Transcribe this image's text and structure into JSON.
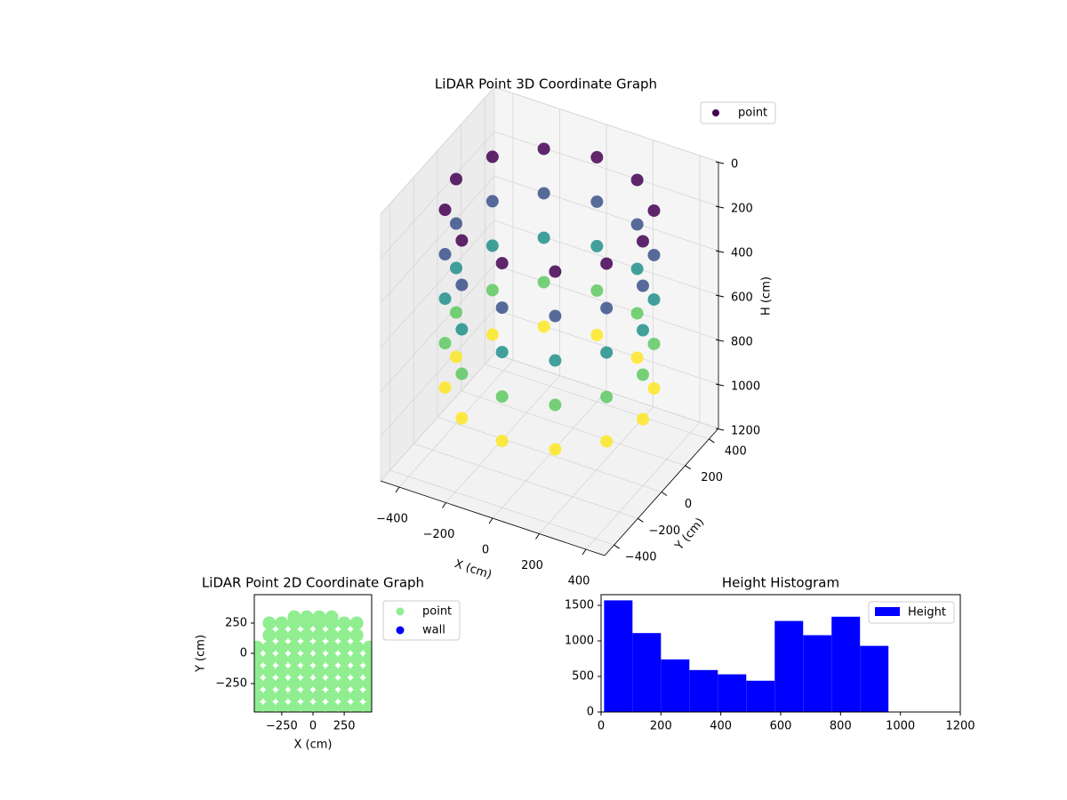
{
  "chart_data": [
    {
      "type": "scatter3d",
      "title": "LiDAR Point 3D Coordinate Graph",
      "xlabel": "X (cm)",
      "ylabel": "Y (cm)",
      "zlabel": "H (cm)",
      "xlim": [
        -480,
        480
      ],
      "ylim": [
        -480,
        480
      ],
      "zlim": [
        1200,
        0
      ],
      "xticks": [
        {
          "value": -400,
          "label": "−400"
        },
        {
          "value": -200,
          "label": "−200"
        },
        0,
        200,
        400
      ],
      "yticks": [
        {
          "value": -400,
          "label": "−400"
        },
        {
          "value": -200,
          "label": "−200"
        },
        0,
        200,
        400
      ],
      "zticks": [
        0,
        200,
        400,
        600,
        800,
        1000,
        1200
      ],
      "colormap": "viridis",
      "legend": "upper right",
      "series": [
        {
          "name": "point",
          "color": "#440154",
          "x": [
            400,
            346,
            200,
            0,
            -200,
            -346,
            -400,
            -346,
            -200,
            0,
            200,
            346,
            400,
            346,
            200,
            0,
            -200,
            -346,
            -400,
            -346,
            -200,
            0,
            200,
            346,
            400,
            346,
            200,
            0,
            -200,
            -346,
            -400,
            -346,
            -200,
            0,
            200,
            346,
            400,
            346,
            200,
            0,
            -200,
            -346,
            -400,
            -346,
            -200,
            0,
            200,
            346,
            400,
            346,
            200,
            0,
            -200,
            -346,
            -400,
            -346,
            -200,
            0,
            200,
            346
          ],
          "y": [
            0,
            200,
            346,
            400,
            346,
            200,
            0,
            -200,
            -346,
            -400,
            -346,
            -200,
            0,
            200,
            346,
            400,
            346,
            200,
            0,
            -200,
            -346,
            -400,
            -346,
            -200,
            0,
            200,
            346,
            400,
            346,
            200,
            0,
            -200,
            -346,
            -400,
            -346,
            -200,
            0,
            200,
            346,
            400,
            346,
            200,
            0,
            -200,
            -346,
            -400,
            -346,
            -200,
            0,
            200,
            346,
            400,
            346,
            200,
            0,
            -200,
            -346,
            -400,
            -346,
            -200
          ],
          "z": [
            100,
            100,
            100,
            100,
            100,
            100,
            100,
            100,
            100,
            100,
            100,
            100,
            300,
            300,
            300,
            300,
            300,
            300,
            300,
            300,
            300,
            300,
            300,
            300,
            500,
            500,
            500,
            500,
            500,
            500,
            500,
            500,
            500,
            500,
            500,
            500,
            700,
            700,
            700,
            700,
            700,
            700,
            700,
            700,
            700,
            700,
            700,
            700,
            900,
            900,
            900,
            900,
            900,
            900,
            900,
            900,
            900,
            900,
            900,
            900
          ]
        }
      ]
    },
    {
      "type": "scatter",
      "title": "LiDAR Point 2D Coordinate Graph",
      "xlabel": "X (cm)",
      "ylabel": "Y (cm)",
      "xlim": [
        -470,
        470
      ],
      "ylim": [
        -485,
        485
      ],
      "xticks": [
        {
          "value": -250,
          "label": "−250"
        },
        0,
        250
      ],
      "yticks": [
        {
          "value": -250,
          "label": "−250"
        },
        0,
        250
      ],
      "legend": "outside right",
      "series": [
        {
          "name": "point",
          "color": "#90ee90",
          "x": [
            -450,
            -450,
            -450,
            -450,
            -450,
            -450,
            -350,
            -350,
            -350,
            -350,
            -350,
            -350,
            -350,
            -350,
            -250,
            -250,
            -250,
            -250,
            -250,
            -250,
            -250,
            -250,
            -150,
            -150,
            -150,
            -150,
            -150,
            -150,
            -150,
            -150,
            -150,
            -50,
            -50,
            -50,
            -50,
            -50,
            -50,
            -50,
            -50,
            -50,
            50,
            50,
            50,
            50,
            50,
            50,
            50,
            50,
            50,
            150,
            150,
            150,
            150,
            150,
            150,
            150,
            150,
            150,
            250,
            250,
            250,
            250,
            250,
            250,
            250,
            250,
            350,
            350,
            350,
            350,
            350,
            350,
            350,
            350,
            450,
            450,
            450,
            450,
            450,
            450
          ],
          "y": [
            -450,
            -350,
            -250,
            -150,
            -50,
            50,
            -450,
            -350,
            -250,
            -150,
            -50,
            50,
            150,
            250,
            -450,
            -350,
            -250,
            -150,
            -50,
            50,
            150,
            250,
            -450,
            -350,
            -250,
            -150,
            -50,
            50,
            150,
            250,
            300,
            -450,
            -350,
            -250,
            -150,
            -50,
            50,
            150,
            250,
            300,
            -450,
            -350,
            -250,
            -150,
            -50,
            50,
            150,
            250,
            300,
            -450,
            -350,
            -250,
            -150,
            -50,
            50,
            150,
            250,
            300,
            -450,
            -350,
            -250,
            -150,
            -50,
            50,
            150,
            250,
            -450,
            -350,
            -250,
            -150,
            -50,
            50,
            150,
            250,
            -450,
            -350,
            -250,
            -150,
            -50,
            50
          ]
        },
        {
          "name": "wall",
          "color": "#0000ff",
          "x": [],
          "y": []
        }
      ]
    },
    {
      "type": "histogram",
      "title": "Height Histogram",
      "bins": [
        10,
        105,
        200,
        295,
        390,
        485,
        580,
        675,
        770,
        865,
        960
      ],
      "series": [
        {
          "name": "Height",
          "color": "#0000ff",
          "values": [
            1570,
            1110,
            740,
            590,
            530,
            440,
            1280,
            1080,
            1340,
            930
          ]
        }
      ],
      "xlim": [
        0,
        1200
      ],
      "ylim": [
        0,
        1650
      ],
      "xticks": [
        0,
        200,
        400,
        600,
        800,
        1000,
        1200
      ],
      "yticks": [
        0,
        500,
        1000,
        1500
      ],
      "legend": "upper right"
    }
  ]
}
